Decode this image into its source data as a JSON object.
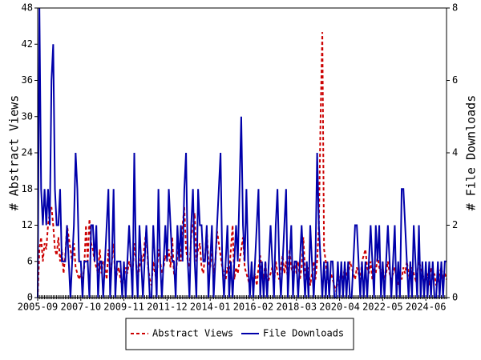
{
  "chart_data": {
    "type": "line",
    "y_label": "# Abstract Views",
    "y2_label": "# File Downloads",
    "categories": [
      "2005-09",
      null,
      null,
      null,
      null,
      null,
      null,
      null,
      null,
      null,
      null,
      null,
      null,
      null,
      null,
      null,
      null,
      null,
      null,
      null,
      null,
      null,
      null,
      null,
      null,
      "2007-10",
      null,
      null,
      null,
      null,
      null,
      null,
      null,
      null,
      null,
      null,
      null,
      null,
      null,
      null,
      null,
      null,
      null,
      null,
      null,
      null,
      null,
      null,
      null,
      null,
      "2009-11",
      null,
      null,
      null,
      null,
      null,
      null,
      null,
      null,
      null,
      null,
      null,
      null,
      null,
      null,
      null,
      null,
      null,
      null,
      null,
      null,
      null,
      null,
      null,
      null,
      "2011-12",
      null,
      null,
      null,
      null,
      null,
      null,
      null,
      null,
      null,
      null,
      null,
      null,
      null,
      null,
      null,
      null,
      null,
      null,
      null,
      null,
      null,
      null,
      null,
      null,
      "2014-01",
      null,
      null,
      null,
      null,
      null,
      null,
      null,
      null,
      null,
      null,
      null,
      null,
      null,
      null,
      null,
      null,
      null,
      null,
      null,
      null,
      null,
      null,
      null,
      null,
      "2016-02",
      null,
      null,
      null,
      null,
      null,
      null,
      null,
      null,
      null,
      null,
      null,
      null,
      null,
      null,
      null,
      null,
      null,
      null,
      null,
      null,
      null,
      null,
      null,
      null,
      "2018-03",
      null,
      null,
      null,
      null,
      null,
      null,
      null,
      null,
      null,
      null,
      null,
      null,
      null,
      null,
      null,
      null,
      null,
      null,
      null,
      null,
      null,
      null,
      null,
      null,
      "2020-04",
      null,
      null,
      null,
      null,
      null,
      null,
      null,
      null,
      null,
      null,
      null,
      null,
      null,
      null,
      null,
      null,
      null,
      null,
      null,
      null,
      null,
      null,
      null,
      null,
      "2022-05",
      null,
      null,
      null,
      null,
      null,
      null,
      null,
      null,
      null,
      null,
      null,
      null,
      null,
      null,
      null,
      null,
      null,
      null,
      null,
      null,
      null,
      null,
      null,
      null,
      "2024-06",
      null,
      null,
      null,
      null,
      null,
      null,
      null,
      null,
      null,
      null,
      null,
      null
    ],
    "series": [
      {
        "name": "Abstract Views",
        "color": "#cc0000",
        "dash": true,
        "values": [
          0,
          8,
          10,
          6,
          9,
          8,
          12,
          14,
          15,
          12,
          8,
          7,
          10,
          6,
          8,
          4,
          7,
          12,
          10,
          8,
          6,
          9,
          5,
          4,
          3,
          4,
          3,
          5,
          12,
          6,
          13,
          9,
          8,
          6,
          5,
          4,
          8,
          4,
          6,
          5,
          3,
          8,
          4,
          6,
          9,
          3,
          4,
          5,
          3,
          2,
          3,
          5,
          4,
          6,
          5,
          4,
          9,
          6,
          3,
          5,
          7,
          6,
          9,
          11,
          5,
          3,
          2,
          6,
          4,
          3,
          8,
          6,
          4,
          5,
          7,
          6,
          8,
          5,
          10,
          4,
          3,
          7,
          9,
          6,
          12,
          15,
          8,
          6,
          5,
          10,
          12,
          14,
          6,
          8,
          9,
          5,
          4,
          7,
          11,
          6,
          5,
          8,
          4,
          6,
          11,
          9,
          7,
          5,
          4,
          3,
          5,
          4,
          8,
          12,
          3,
          5,
          4,
          6,
          8,
          10,
          5,
          4,
          3,
          2,
          4,
          3,
          4,
          2,
          5,
          7,
          4,
          3,
          6,
          2,
          3,
          4,
          5,
          2,
          6,
          4,
          3,
          5,
          7,
          4,
          6,
          3,
          8,
          5,
          4,
          6,
          4,
          6,
          3,
          5,
          10,
          4,
          3,
          5,
          2,
          4,
          6,
          3,
          6,
          12,
          30,
          44,
          8,
          6,
          3,
          2,
          4,
          3,
          2,
          1,
          3,
          3,
          4,
          3,
          5,
          4,
          3,
          6,
          5,
          4,
          3,
          5,
          4,
          3,
          6,
          7,
          8,
          5,
          4,
          6,
          3,
          5,
          4,
          7,
          5,
          4,
          5,
          3,
          4,
          6,
          4,
          3,
          4,
          5,
          3,
          2,
          4,
          3,
          5,
          4,
          6,
          4,
          3,
          5,
          4,
          3,
          4,
          6,
          5,
          4,
          3,
          3,
          4,
          2,
          5,
          3,
          4,
          2,
          3,
          4,
          5,
          3,
          4,
          3
        ]
      },
      {
        "name": "File Downloads",
        "color": "#0000aa",
        "axis": "y2",
        "values": [
          0,
          8,
          3,
          2,
          3,
          2,
          3,
          2,
          6,
          7,
          3,
          2,
          2,
          3,
          1,
          1,
          1,
          2,
          1,
          0,
          1,
          2,
          4,
          3,
          1,
          1,
          0,
          1,
          1,
          1,
          0,
          2,
          2,
          1,
          2,
          0,
          1,
          1,
          0,
          1,
          2,
          3,
          0,
          1,
          3,
          0,
          1,
          1,
          1,
          0,
          1,
          0,
          1,
          2,
          1,
          0,
          4,
          1,
          0,
          2,
          1,
          0,
          1,
          2,
          1,
          0,
          0,
          2,
          1,
          0,
          3,
          1,
          0,
          1,
          2,
          1,
          3,
          2,
          1,
          1,
          0,
          2,
          1,
          2,
          1,
          3,
          4,
          1,
          0,
          2,
          3,
          1,
          0,
          3,
          2,
          2,
          1,
          1,
          2,
          0,
          1,
          2,
          0,
          1,
          2,
          3,
          4,
          1,
          0,
          1,
          2,
          0,
          1,
          0,
          1,
          2,
          1,
          3,
          5,
          2,
          1,
          3,
          1,
          0,
          1,
          0,
          1,
          2,
          3,
          0,
          1,
          0,
          1,
          0,
          1,
          2,
          1,
          0,
          2,
          3,
          1,
          0,
          1,
          2,
          3,
          0,
          1,
          2,
          0,
          1,
          1,
          0,
          1,
          2,
          1,
          0,
          1,
          0,
          2,
          1,
          0,
          1,
          4,
          2,
          1,
          0,
          1,
          0,
          1,
          0,
          1,
          1,
          0,
          0,
          1,
          0,
          1,
          0,
          1,
          0,
          1,
          0,
          0,
          1,
          2,
          2,
          1,
          0,
          1,
          0,
          1,
          0,
          1,
          2,
          1,
          0,
          2,
          1,
          2,
          0,
          1,
          0,
          1,
          2,
          1,
          0,
          1,
          2,
          0,
          1,
          0,
          3,
          3,
          2,
          1,
          0,
          1,
          0,
          2,
          1,
          0,
          2,
          0,
          1,
          0,
          1,
          0,
          1,
          0,
          1,
          0,
          0,
          1,
          0,
          1,
          0,
          1,
          1
        ]
      }
    ],
    "ylim": [
      0,
      48
    ],
    "yticks": [
      0,
      6,
      12,
      18,
      24,
      30,
      36,
      42,
      48
    ],
    "y2lim": [
      0,
      8
    ],
    "y2ticks": [
      0,
      2,
      4,
      6,
      8
    ]
  }
}
